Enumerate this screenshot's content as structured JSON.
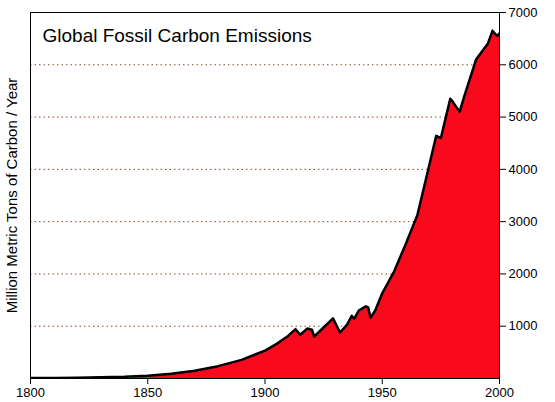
{
  "chart_data": {
    "type": "area",
    "title": "Global Fossil Carbon Emissions",
    "y_label": "Million Metric Tons of Carbon / Year",
    "x": [
      1800,
      1810,
      1820,
      1830,
      1840,
      1850,
      1860,
      1870,
      1880,
      1890,
      1900,
      1905,
      1910,
      1913,
      1915,
      1918,
      1920,
      1921,
      1925,
      1929,
      1932,
      1935,
      1937,
      1938,
      1940,
      1943,
      1944,
      1945,
      1947,
      1950,
      1955,
      1960,
      1965,
      1970,
      1973,
      1975,
      1979,
      1980,
      1983,
      1985,
      1990,
      1995,
      1997,
      1999,
      2000
    ],
    "values": [
      8,
      10,
      14,
      24,
      33,
      54,
      91,
      147,
      236,
      356,
      534,
      663,
      819,
      943,
      836,
      955,
      932,
      803,
      975,
      1150,
      880,
      1030,
      1200,
      1140,
      1300,
      1380,
      1360,
      1160,
      1300,
      1630,
      2040,
      2570,
      3130,
      4070,
      4640,
      4600,
      5350,
      5300,
      5100,
      5400,
      6100,
      6400,
      6650,
      6550,
      6600
    ],
    "color": "#f80a1c",
    "xlim": [
      1800,
      2000
    ],
    "xticks": [
      1800,
      1850,
      1900,
      1950,
      2000
    ],
    "ylim": [
      0,
      7000
    ],
    "yticks": [
      1000,
      2000,
      3000,
      4000,
      5000,
      6000,
      7000
    ],
    "grid": true
  }
}
